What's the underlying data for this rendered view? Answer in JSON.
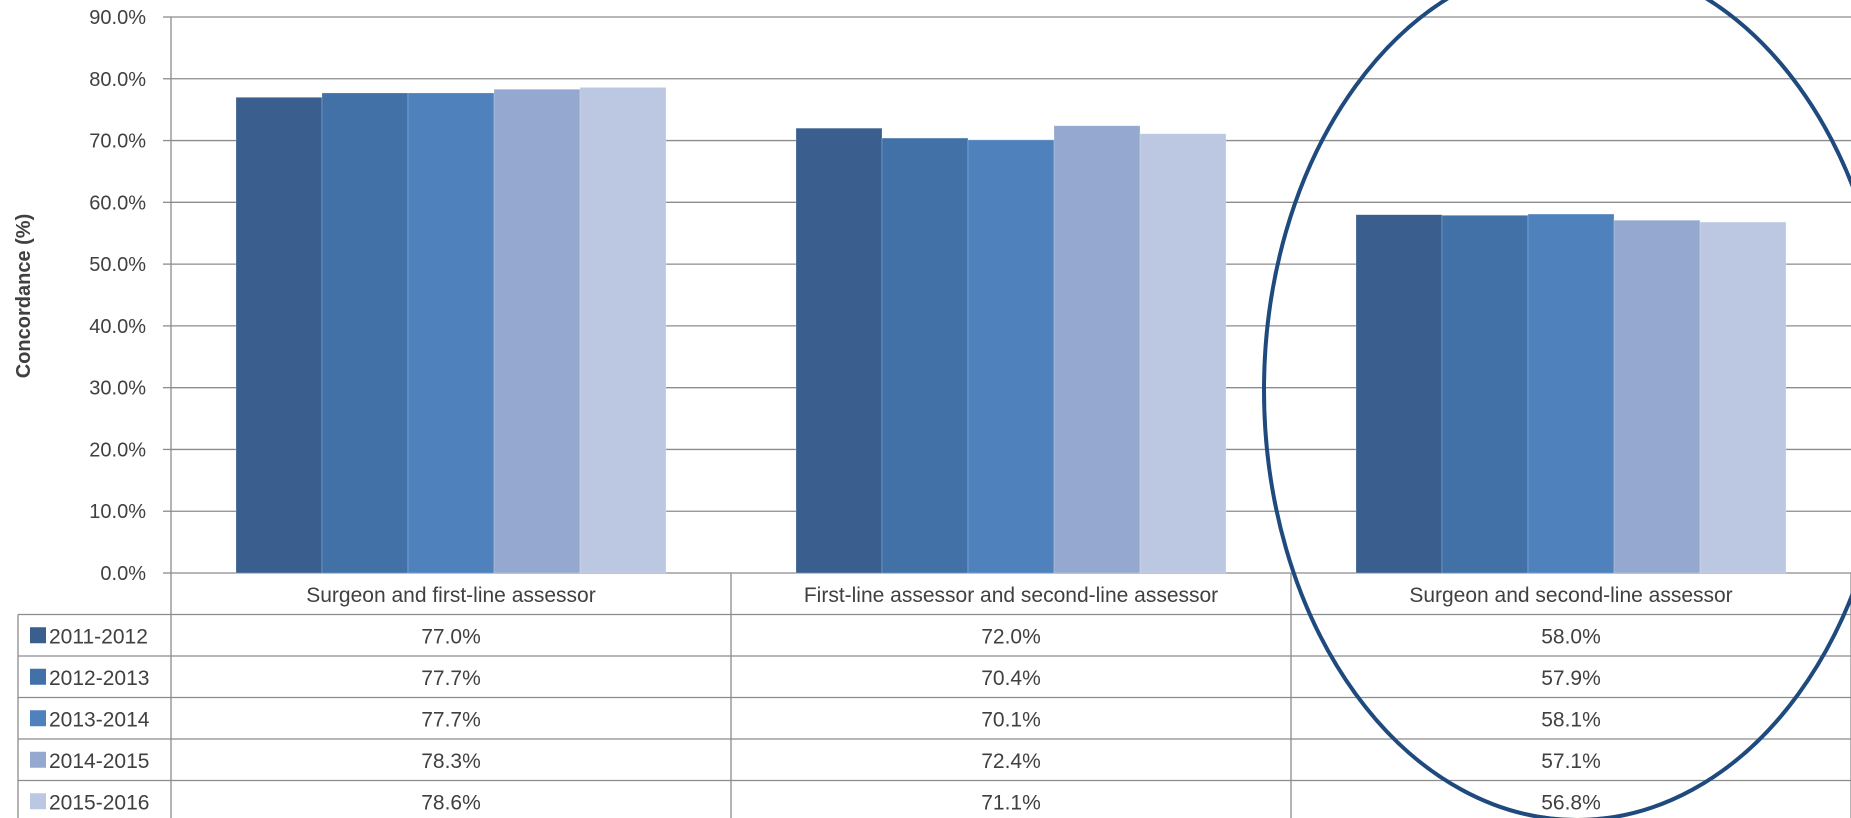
{
  "chart_data": {
    "type": "bar",
    "ylabel": "Concordance (%)",
    "ylim": [
      0,
      90
    ],
    "yticks": [
      0,
      10,
      20,
      30,
      40,
      50,
      60,
      70,
      80,
      90
    ],
    "ytick_labels": [
      "0.0%",
      "10.0%",
      "20.0%",
      "30.0%",
      "40.0%",
      "50.0%",
      "60.0%",
      "70.0%",
      "80.0%",
      "90.0%"
    ],
    "grid": true,
    "legend": "data-table",
    "categories": [
      "Surgeon and first-line assessor",
      "First-line assessor and second-line assessor",
      "Surgeon and second-line assessor"
    ],
    "series": [
      {
        "name": "2011-2012",
        "color": "#3A5F8F",
        "values": [
          77.0,
          72.0,
          58.0
        ],
        "labels": [
          "77.0%",
          "72.0%",
          "58.0%"
        ]
      },
      {
        "name": "2012-2013",
        "color": "#4171A7",
        "values": [
          77.7,
          70.4,
          57.9
        ],
        "labels": [
          "77.7%",
          "70.4%",
          "57.9%"
        ]
      },
      {
        "name": "2013-2014",
        "color": "#4F81BD",
        "values": [
          77.7,
          70.1,
          58.1
        ],
        "labels": [
          "77.7%",
          "70.1%",
          "58.1%"
        ]
      },
      {
        "name": "2014-2015",
        "color": "#95A9D0",
        "values": [
          78.3,
          72.4,
          57.1
        ],
        "labels": [
          "78.3%",
          "72.4%",
          "57.1%"
        ]
      },
      {
        "name": "2015-2016",
        "color": "#BCC8E1",
        "values": [
          78.6,
          71.1,
          56.8
        ],
        "labels": [
          "78.6%",
          "71.1%",
          "56.8%"
        ]
      }
    ],
    "annotation": {
      "shape": "ellipse",
      "highlights_category": "Surgeon and second-line assessor",
      "color": "#1F4A7E"
    }
  }
}
